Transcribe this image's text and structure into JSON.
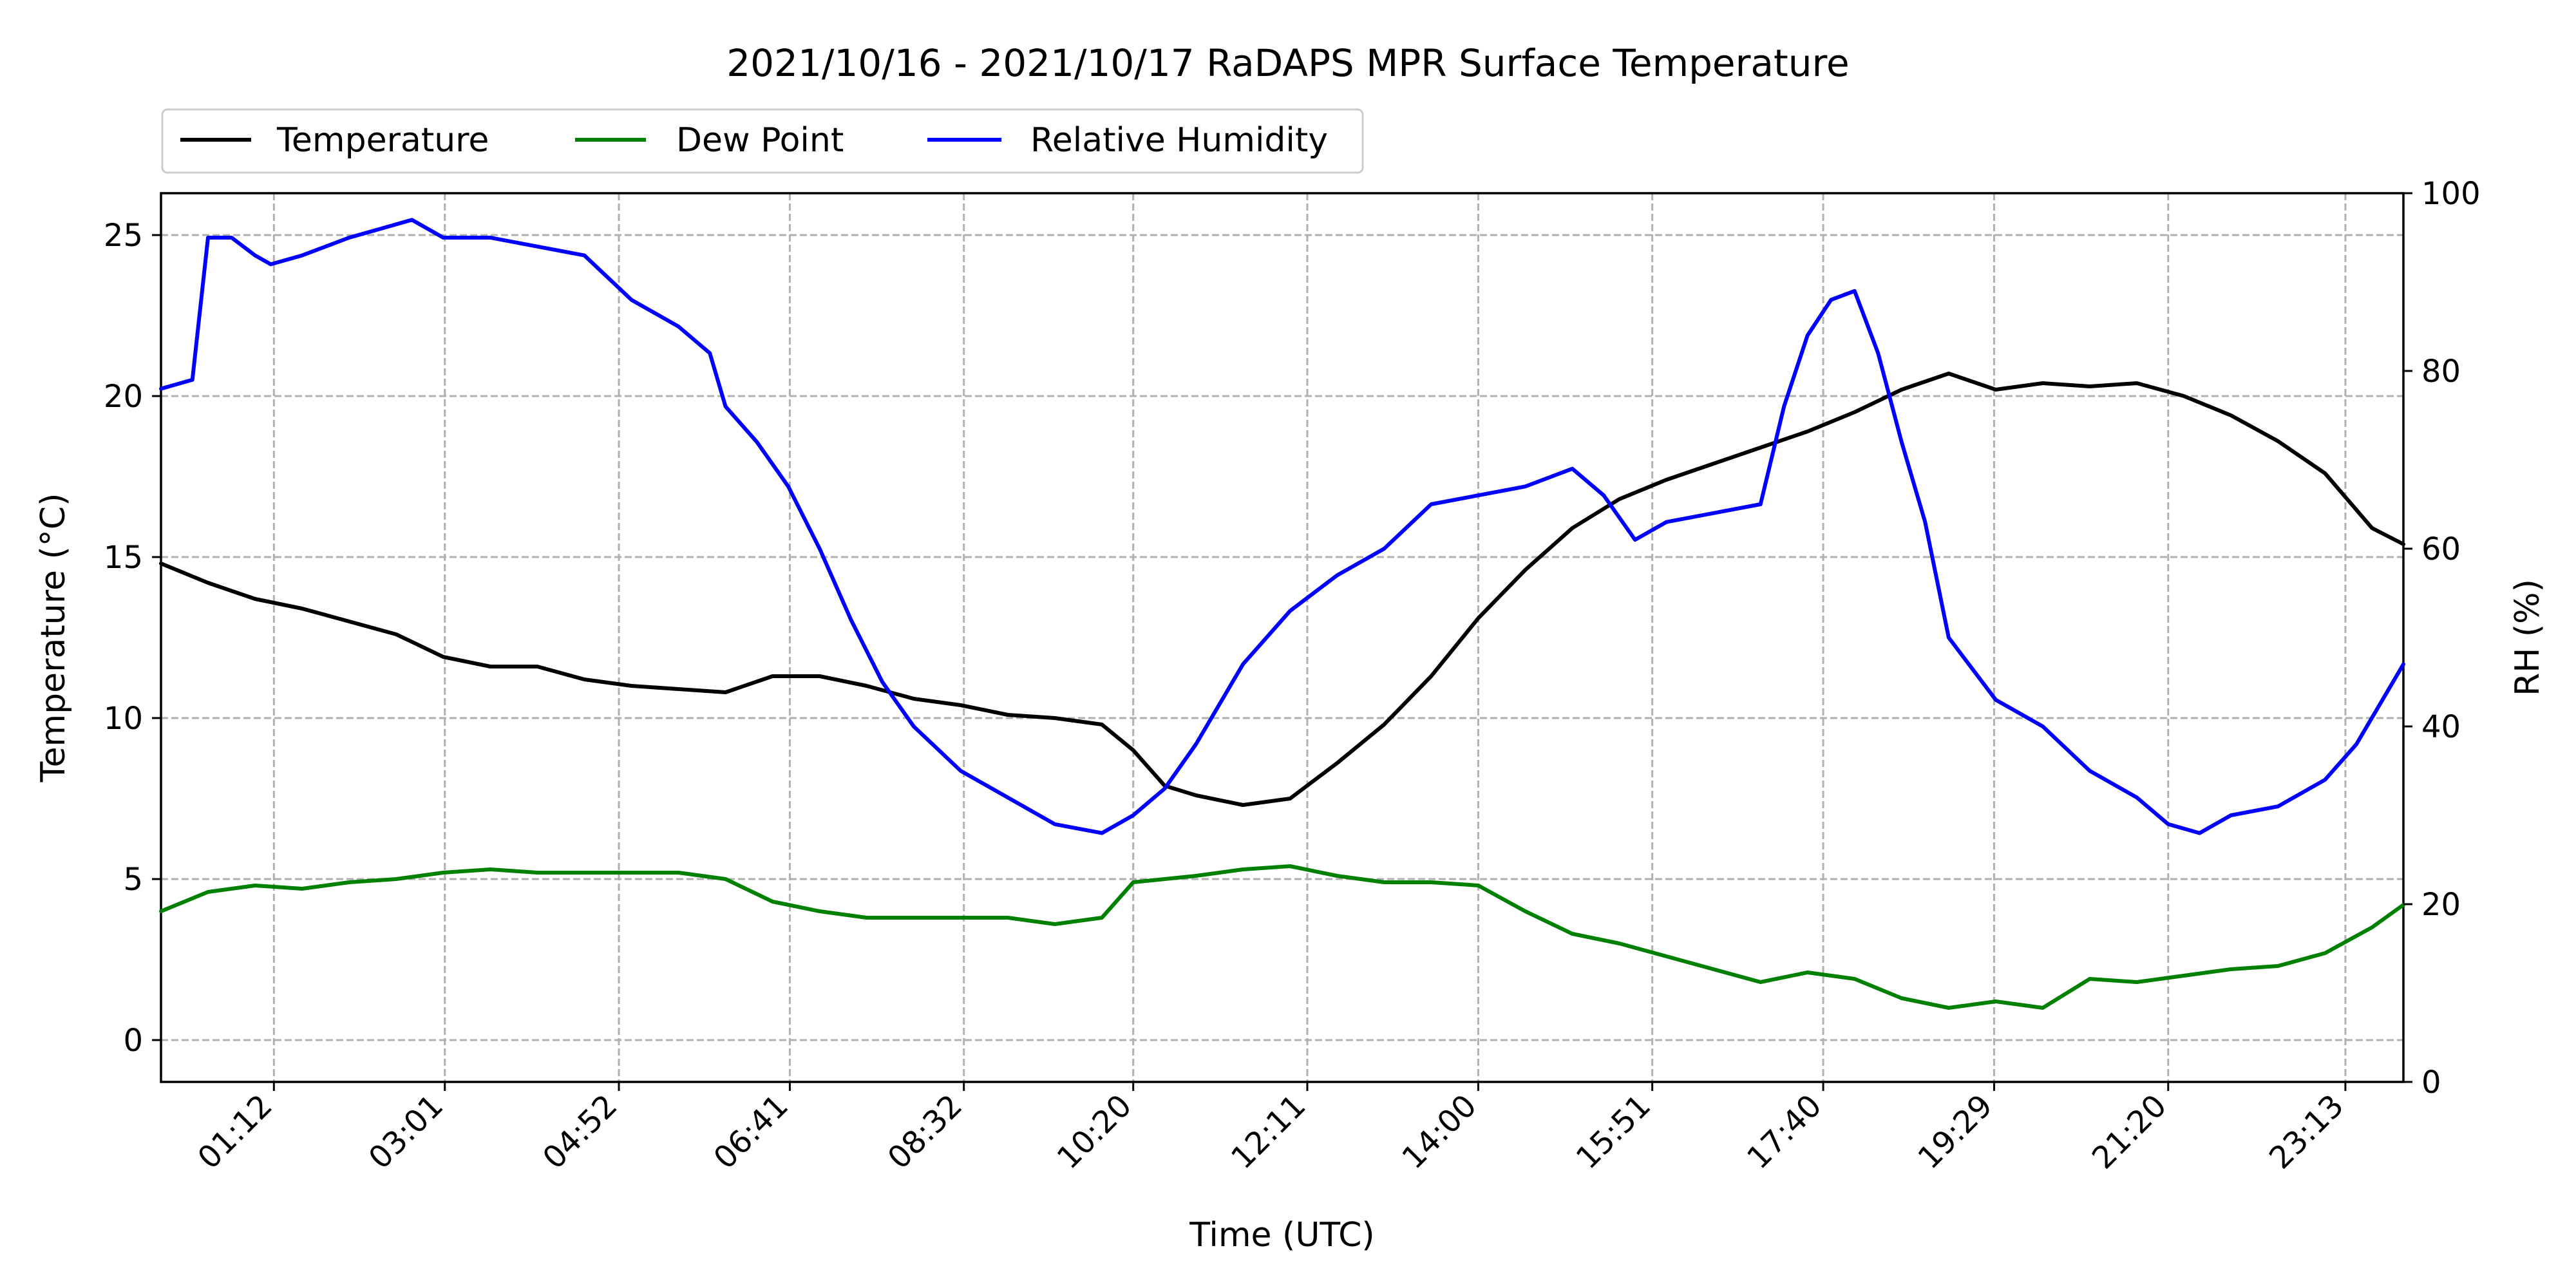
{
  "chart_data": {
    "type": "line",
    "title": "2021/10/16 - 2021/10/17 RaDAPS MPR Surface Temperature",
    "xlabel": "Time (UTC)",
    "ylabel": "Temperature ($^\\circ$C)",
    "ylabel_text": "Temperature (°C)",
    "y2label": "RH (%)",
    "xlim": [
      "00:00",
      "23:50"
    ],
    "ylim": [
      -1.3,
      26.3
    ],
    "y2lim": [
      0,
      100
    ],
    "x_ticks": [
      "01:12",
      "03:01",
      "04:52",
      "06:41",
      "08:32",
      "10:20",
      "12:11",
      "14:00",
      "15:51",
      "17:40",
      "19:29",
      "21:20",
      "23:13"
    ],
    "y_ticks": [
      0,
      5,
      10,
      15,
      20,
      25
    ],
    "y2_ticks": [
      0,
      20,
      40,
      60,
      80,
      100
    ],
    "grid": true,
    "legend_placement": "top-left, above plot",
    "series": [
      {
        "name": "Temperature",
        "axis": "left",
        "color": "#000000",
        "x": [
          "00:00",
          "00:30",
          "01:00",
          "01:30",
          "02:00",
          "02:30",
          "03:00",
          "03:30",
          "04:00",
          "04:30",
          "05:00",
          "05:30",
          "06:00",
          "06:30",
          "07:00",
          "07:30",
          "08:00",
          "08:30",
          "09:00",
          "09:30",
          "10:00",
          "10:20",
          "10:40",
          "11:00",
          "11:30",
          "12:00",
          "12:30",
          "13:00",
          "13:30",
          "14:00",
          "14:30",
          "15:00",
          "15:30",
          "16:00",
          "16:30",
          "17:00",
          "17:30",
          "18:00",
          "18:30",
          "19:00",
          "19:30",
          "20:00",
          "20:30",
          "21:00",
          "21:30",
          "22:00",
          "22:30",
          "23:00",
          "23:30",
          "23:50"
        ],
        "values": [
          14.8,
          14.2,
          13.7,
          13.4,
          13.0,
          12.6,
          11.9,
          11.6,
          11.6,
          11.2,
          11.0,
          10.9,
          10.8,
          11.3,
          11.3,
          11.0,
          10.6,
          10.4,
          10.1,
          10.0,
          9.8,
          9.0,
          7.9,
          7.6,
          7.3,
          7.5,
          8.6,
          9.8,
          11.3,
          13.1,
          14.6,
          15.9,
          16.8,
          17.4,
          17.9,
          18.4,
          18.9,
          19.5,
          20.2,
          20.7,
          20.2,
          20.4,
          20.3,
          20.4,
          20.0,
          19.4,
          18.6,
          17.6,
          15.9,
          15.4
        ]
      },
      {
        "name": "Dew Point",
        "axis": "left",
        "color": "#008000",
        "x": [
          "00:00",
          "00:30",
          "01:00",
          "01:30",
          "02:00",
          "02:30",
          "03:00",
          "03:30",
          "04:00",
          "04:30",
          "05:00",
          "05:30",
          "06:00",
          "06:30",
          "07:00",
          "07:30",
          "08:00",
          "08:30",
          "09:00",
          "09:30",
          "10:00",
          "10:20",
          "10:40",
          "11:00",
          "11:30",
          "12:00",
          "12:30",
          "13:00",
          "13:30",
          "14:00",
          "14:30",
          "15:00",
          "15:30",
          "16:00",
          "16:30",
          "17:00",
          "17:30",
          "18:00",
          "18:30",
          "19:00",
          "19:30",
          "20:00",
          "20:30",
          "21:00",
          "21:30",
          "22:00",
          "22:30",
          "23:00",
          "23:30",
          "23:50"
        ],
        "values": [
          4.0,
          4.6,
          4.8,
          4.7,
          4.9,
          5.0,
          5.2,
          5.3,
          5.2,
          5.2,
          5.2,
          5.2,
          5.0,
          4.3,
          4.0,
          3.8,
          3.8,
          3.8,
          3.8,
          3.6,
          3.8,
          4.9,
          5.0,
          5.1,
          5.3,
          5.4,
          5.1,
          4.9,
          4.9,
          4.8,
          4.0,
          3.3,
          3.0,
          2.6,
          2.2,
          1.8,
          2.1,
          1.9,
          1.3,
          1.0,
          1.2,
          1.0,
          1.9,
          1.8,
          2.0,
          2.2,
          2.3,
          2.7,
          3.5,
          4.2
        ]
      },
      {
        "name": "Relative Humidity",
        "axis": "right",
        "color": "#0000ff",
        "x": [
          "00:00",
          "00:20",
          "00:30",
          "00:45",
          "01:00",
          "01:10",
          "01:30",
          "02:00",
          "02:20",
          "02:40",
          "03:00",
          "03:30",
          "04:00",
          "04:30",
          "05:00",
          "05:30",
          "05:50",
          "06:00",
          "06:20",
          "06:40",
          "07:00",
          "07:20",
          "07:40",
          "08:00",
          "08:30",
          "09:00",
          "09:30",
          "10:00",
          "10:20",
          "10:40",
          "11:00",
          "11:30",
          "12:00",
          "12:30",
          "13:00",
          "13:30",
          "14:00",
          "14:30",
          "15:00",
          "15:20",
          "15:40",
          "16:00",
          "16:30",
          "17:00",
          "17:15",
          "17:30",
          "17:45",
          "18:00",
          "18:15",
          "18:30",
          "18:45",
          "19:00",
          "19:30",
          "20:00",
          "20:30",
          "21:00",
          "21:20",
          "21:40",
          "22:00",
          "22:30",
          "23:00",
          "23:20",
          "23:40",
          "23:50"
        ],
        "values": [
          78,
          79,
          95,
          95,
          93,
          92,
          93,
          95,
          96,
          97,
          95,
          95,
          94,
          93,
          88,
          85,
          82,
          76,
          72,
          67,
          60,
          52,
          45,
          40,
          35,
          32,
          29,
          28,
          30,
          33,
          38,
          47,
          53,
          57,
          60,
          65,
          66,
          67,
          69,
          66,
          61,
          63,
          64,
          65,
          76,
          84,
          88,
          89,
          82,
          72,
          63,
          50,
          43,
          40,
          35,
          32,
          29,
          28,
          30,
          31,
          34,
          38,
          44,
          47
        ]
      }
    ]
  }
}
